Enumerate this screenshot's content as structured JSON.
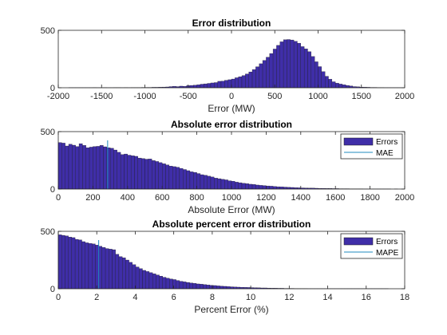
{
  "chart_data": [
    {
      "type": "bar",
      "title": "Error distribution",
      "xlabel": "Error (MW)",
      "ylabel": "",
      "xlim": [
        -2000,
        2000
      ],
      "ylim": [
        0,
        500
      ],
      "xticks": [
        -2000,
        -1500,
        -1000,
        -500,
        0,
        500,
        1000,
        1500,
        2000
      ],
      "xtick_labels": [
        "-2000",
        "-1500",
        "-1000",
        "-500",
        "0",
        "500",
        "1000",
        "1500",
        "2000"
      ],
      "yticks": [
        0,
        500
      ],
      "ytick_labels": [
        "0",
        "500"
      ],
      "bar_color": "#3f2ea8",
      "bin_start": -2000,
      "bin_width": 40,
      "values": [
        0,
        0,
        0,
        1,
        1,
        1,
        1,
        1,
        1,
        1,
        2,
        1,
        1,
        2,
        1,
        1,
        2,
        2,
        1,
        2,
        1,
        2,
        2,
        2,
        3,
        3,
        3,
        4,
        4,
        5,
        6,
        7,
        10,
        12,
        10,
        14,
        12,
        18,
        20,
        22,
        26,
        31,
        34,
        38,
        42,
        45,
        56,
        58,
        65,
        70,
        76,
        87,
        96,
        106,
        120,
        138,
        158,
        183,
        209,
        238,
        266,
        298,
        337,
        369,
        400,
        418,
        420,
        416,
        404,
        388,
        358,
        338,
        314,
        272,
        226,
        184,
        140,
        100,
        74,
        52,
        40,
        32,
        26,
        20,
        15,
        10,
        8,
        6,
        5,
        4,
        3,
        3,
        2,
        2,
        1,
        1,
        1,
        1,
        1,
        0
      ]
    },
    {
      "type": "bar",
      "title": "Absolute error distribution",
      "xlabel": "Absolute Error (MW)",
      "ylabel": "",
      "xlim": [
        0,
        2000
      ],
      "ylim": [
        0,
        500
      ],
      "xticks": [
        0,
        200,
        400,
        600,
        800,
        1000,
        1200,
        1400,
        1600,
        1800,
        2000
      ],
      "xtick_labels": [
        "0",
        "200",
        "400",
        "600",
        "800",
        "1000",
        "1200",
        "1400",
        "1600",
        "1800",
        "2000"
      ],
      "yticks": [
        0,
        500
      ],
      "ytick_labels": [
        "0",
        "500"
      ],
      "bar_color": "#3f2ea8",
      "bin_start": 0,
      "bin_width": 20,
      "values": [
        405,
        400,
        375,
        390,
        382,
        370,
        395,
        380,
        360,
        365,
        370,
        372,
        380,
        368,
        360,
        355,
        340,
        320,
        300,
        305,
        295,
        290,
        285,
        270,
        265,
        260,
        262,
        248,
        240,
        230,
        220,
        210,
        200,
        195,
        190,
        180,
        170,
        160,
        150,
        145,
        135,
        125,
        120,
        112,
        105,
        95,
        90,
        85,
        80,
        72,
        68,
        60,
        55,
        50,
        47,
        42,
        40,
        35,
        32,
        30,
        27,
        25,
        22,
        20,
        19,
        17,
        15,
        14,
        12,
        11,
        10,
        9,
        8,
        8,
        7,
        6,
        6,
        5,
        5,
        4,
        4,
        3,
        3,
        3,
        2,
        2,
        2,
        2,
        1,
        1,
        1,
        1,
        1,
        1,
        1,
        1,
        0,
        1
      ],
      "legend": {
        "location": "top-right",
        "entries": [
          "Errors",
          "MAE"
        ]
      },
      "reference_line": {
        "name": "MAE",
        "x": 285,
        "color": "#1f8bbf"
      }
    },
    {
      "type": "bar",
      "title": "Absolute percent error distribution",
      "xlabel": "Percent Error (%)",
      "ylabel": "",
      "xlim": [
        0,
        18
      ],
      "ylim": [
        0,
        500
      ],
      "xticks": [
        0,
        2,
        4,
        6,
        8,
        10,
        12,
        14,
        16,
        18
      ],
      "xtick_labels": [
        "0",
        "2",
        "4",
        "6",
        "8",
        "10",
        "12",
        "14",
        "16",
        "18"
      ],
      "yticks": [
        0,
        500
      ],
      "ytick_labels": [
        "0",
        "500"
      ],
      "bar_color": "#3f2ea8",
      "bin_start": 0,
      "bin_width": 0.175,
      "values": [
        470,
        465,
        460,
        450,
        445,
        430,
        425,
        410,
        400,
        395,
        390,
        380,
        370,
        360,
        350,
        345,
        340,
        300,
        280,
        270,
        250,
        230,
        210,
        190,
        175,
        160,
        150,
        140,
        130,
        120,
        110,
        100,
        92,
        85,
        80,
        72,
        65,
        60,
        55,
        50,
        47,
        42,
        40,
        36,
        33,
        30,
        28,
        25,
        23,
        21,
        19,
        17,
        15,
        14,
        13,
        12,
        11,
        10,
        9,
        8,
        7,
        7,
        6,
        5,
        5,
        4,
        4,
        3,
        3,
        3,
        2,
        2,
        2,
        2,
        1,
        1,
        1,
        1,
        1,
        1,
        1,
        1,
        1,
        1,
        1,
        1,
        1,
        1,
        1,
        1,
        1,
        1,
        1,
        1,
        1,
        1,
        1,
        1
      ],
      "legend": {
        "location": "top-right",
        "entries": [
          "Errors",
          "MAPE"
        ]
      },
      "reference_line": {
        "name": "MAPE",
        "x": 2.1,
        "color": "#1f8bbf"
      }
    }
  ]
}
